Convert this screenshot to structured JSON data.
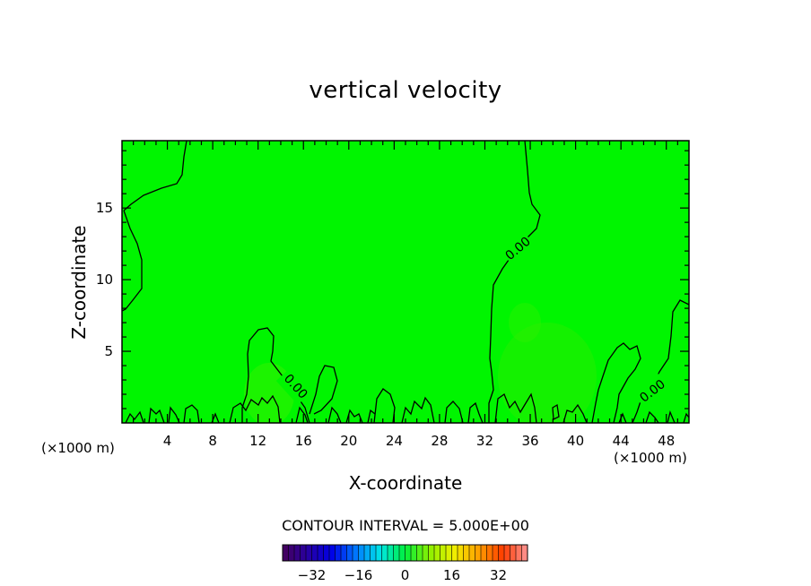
{
  "chart_data": {
    "type": "heatmap",
    "title": "vertical velocity",
    "xlabel": "X-coordinate",
    "ylabel": "Z-coordinate",
    "x_unit": "(×1000 m)",
    "xlim": [
      0,
      50
    ],
    "ylim": [
      0,
      19.7
    ],
    "x_ticks": [
      "4",
      "8",
      "12",
      "16",
      "20",
      "24",
      "28",
      "32",
      "36",
      "40",
      "44",
      "48"
    ],
    "y_ticks": [
      "5",
      "10",
      "15"
    ],
    "contour_interval_text": "CONTOUR INTERVAL = 5.000E+00",
    "contour_labels": [
      "0.00",
      "0.00",
      "0.00"
    ],
    "colorbar": {
      "ticks": [
        "-32",
        "-16",
        "0",
        "16",
        "32"
      ],
      "range": [
        -42,
        42
      ]
    },
    "field_value_typical": 0,
    "colors": {
      "field": "#00f500",
      "contour": "#000000"
    }
  }
}
